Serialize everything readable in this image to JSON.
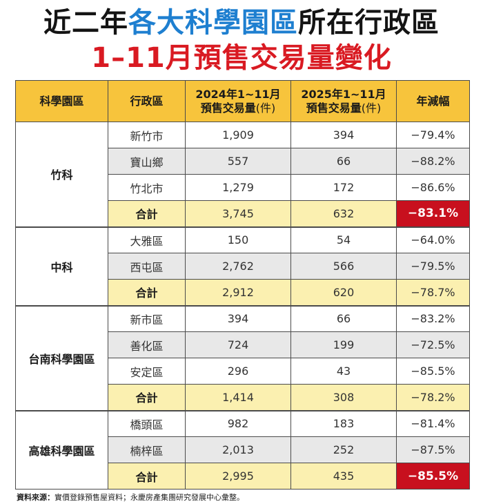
{
  "title": {
    "line1_prefix": "近二年",
    "line1_highlight": "各大科學園區",
    "line1_suffix": "所在行政區",
    "line2": "1–11月預售交易量變化"
  },
  "table": {
    "headers": {
      "park": "科學園區",
      "district": "行政區",
      "y2024_line1": "2024年1~11月",
      "y2024_line2": "預售交易量",
      "y2025_line1": "2025年1~11月",
      "y2025_line2": "預售交易量",
      "unit": "(件)",
      "change": "年減幅"
    },
    "groups": [
      {
        "park": "竹科",
        "rows": [
          {
            "district": "新竹市",
            "y2024": "1,909",
            "y2025": "394",
            "change": "−79.4%"
          },
          {
            "district": "寶山鄉",
            "y2024": "557",
            "y2025": "66",
            "change": "−88.2%"
          },
          {
            "district": "竹北市",
            "y2024": "1,279",
            "y2025": "172",
            "change": "−86.6%"
          }
        ],
        "total": {
          "district": "合計",
          "y2024": "3,745",
          "y2025": "632",
          "change": "−83.1%"
        }
      },
      {
        "park": "中科",
        "rows": [
          {
            "district": "大雅區",
            "y2024": "150",
            "y2025": "54",
            "change": "−64.0%"
          },
          {
            "district": "西屯區",
            "y2024": "2,762",
            "y2025": "566",
            "change": "−79.5%"
          }
        ],
        "total": {
          "district": "合計",
          "y2024": "2,912",
          "y2025": "620",
          "change": "−78.7%"
        }
      },
      {
        "park": "台南科學園區",
        "rows": [
          {
            "district": "新市區",
            "y2024": "394",
            "y2025": "66",
            "change": "−83.2%"
          },
          {
            "district": "善化區",
            "y2024": "724",
            "y2025": "199",
            "change": "−72.5%"
          },
          {
            "district": "安定區",
            "y2024": "296",
            "y2025": "43",
            "change": "−85.5%"
          }
        ],
        "total": {
          "district": "合計",
          "y2024": "1,414",
          "y2025": "308",
          "change": "−78.2%"
        }
      },
      {
        "park": "高雄科學園區",
        "rows": [
          {
            "district": "橋頭區",
            "y2024": "982",
            "y2025": "183",
            "change": "−81.4%"
          },
          {
            "district": "楠梓區",
            "y2024": "2,013",
            "y2025": "252",
            "change": "−87.5%"
          }
        ],
        "total": {
          "district": "合計",
          "y2024": "2,995",
          "y2025": "435",
          "change": "−85.5%"
        }
      }
    ]
  },
  "source": {
    "label": "資料來源：",
    "text": "實價登錄預售屋資料；永慶房產集團研究發展中心彙整。"
  },
  "colors": {
    "header_bg": "#f7c43c",
    "total_bg": "#fbf0b0",
    "alt_row_bg": "#e8e8e8",
    "highlight_red": "#c8101e",
    "title_blue": "#1e7fd0",
    "title_red": "#d91a22"
  }
}
